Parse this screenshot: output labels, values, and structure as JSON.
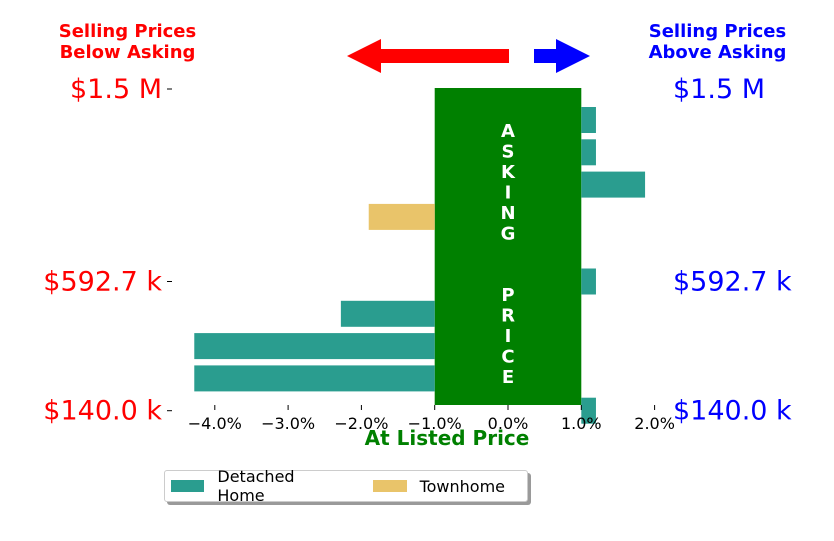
{
  "header": {
    "left_line1": "Selling Prices",
    "left_line2": "Below Asking",
    "right_line1": "Selling Prices",
    "right_line2": "Above Asking"
  },
  "colors": {
    "below": "#ff0000",
    "above": "#0000ff",
    "asking_box": "#008000",
    "detached": "#2a9d8f",
    "townhome": "#e9c46a"
  },
  "chart_data": {
    "type": "bar",
    "orientation": "horizontal",
    "xlabel": "At Listed Price",
    "x_ticks": [
      "−4.0%",
      "−3.0%",
      "−2.0%",
      "−1.0%",
      "0.0%",
      "1.0%",
      "2.0%"
    ],
    "x_tick_values": [
      -4.0,
      -3.0,
      -2.0,
      -1.0,
      0.0,
      1.0,
      2.0
    ],
    "xlim": [
      -4.5,
      2.3
    ],
    "y_ticks_left": [
      "$1.5 M",
      "$592.7 k",
      "$140.0 k"
    ],
    "y_ticks_right": [
      "$1.5 M",
      "$592.7 k",
      "$140.0 k"
    ],
    "y_tick_rows": [
      0,
      5,
      9
    ],
    "asking_box": {
      "x_from": -1.0,
      "x_to": 1.0,
      "label": "ASKING  PRICE"
    },
    "series_names": [
      "Detached Home",
      "Townhome"
    ],
    "bars": [
      {
        "row": 0,
        "series": "Detached Home",
        "from": 1.0,
        "to": 1.2
      },
      {
        "row": 1,
        "series": "Detached Home",
        "from": 1.0,
        "to": 1.2
      },
      {
        "row": 2,
        "series": "Detached Home",
        "from": 1.0,
        "to": 1.87
      },
      {
        "row": 3,
        "series": "Townhome",
        "from": -1.9,
        "to": -1.0
      },
      {
        "row": 5,
        "series": "Detached Home",
        "from": 1.0,
        "to": 1.2
      },
      {
        "row": 6,
        "series": "Detached Home",
        "from": -2.28,
        "to": -1.0
      },
      {
        "row": 7,
        "series": "Detached Home",
        "from": -4.28,
        "to": -1.0
      },
      {
        "row": 8,
        "series": "Detached Home",
        "from": -4.28,
        "to": -1.0
      },
      {
        "row": 9,
        "series": "Detached Home",
        "from": 1.0,
        "to": 1.2
      }
    ],
    "legend": [
      {
        "label": "Detached Home"
      },
      {
        "label": "Townhome"
      }
    ],
    "legend_position": "bottom-center"
  }
}
